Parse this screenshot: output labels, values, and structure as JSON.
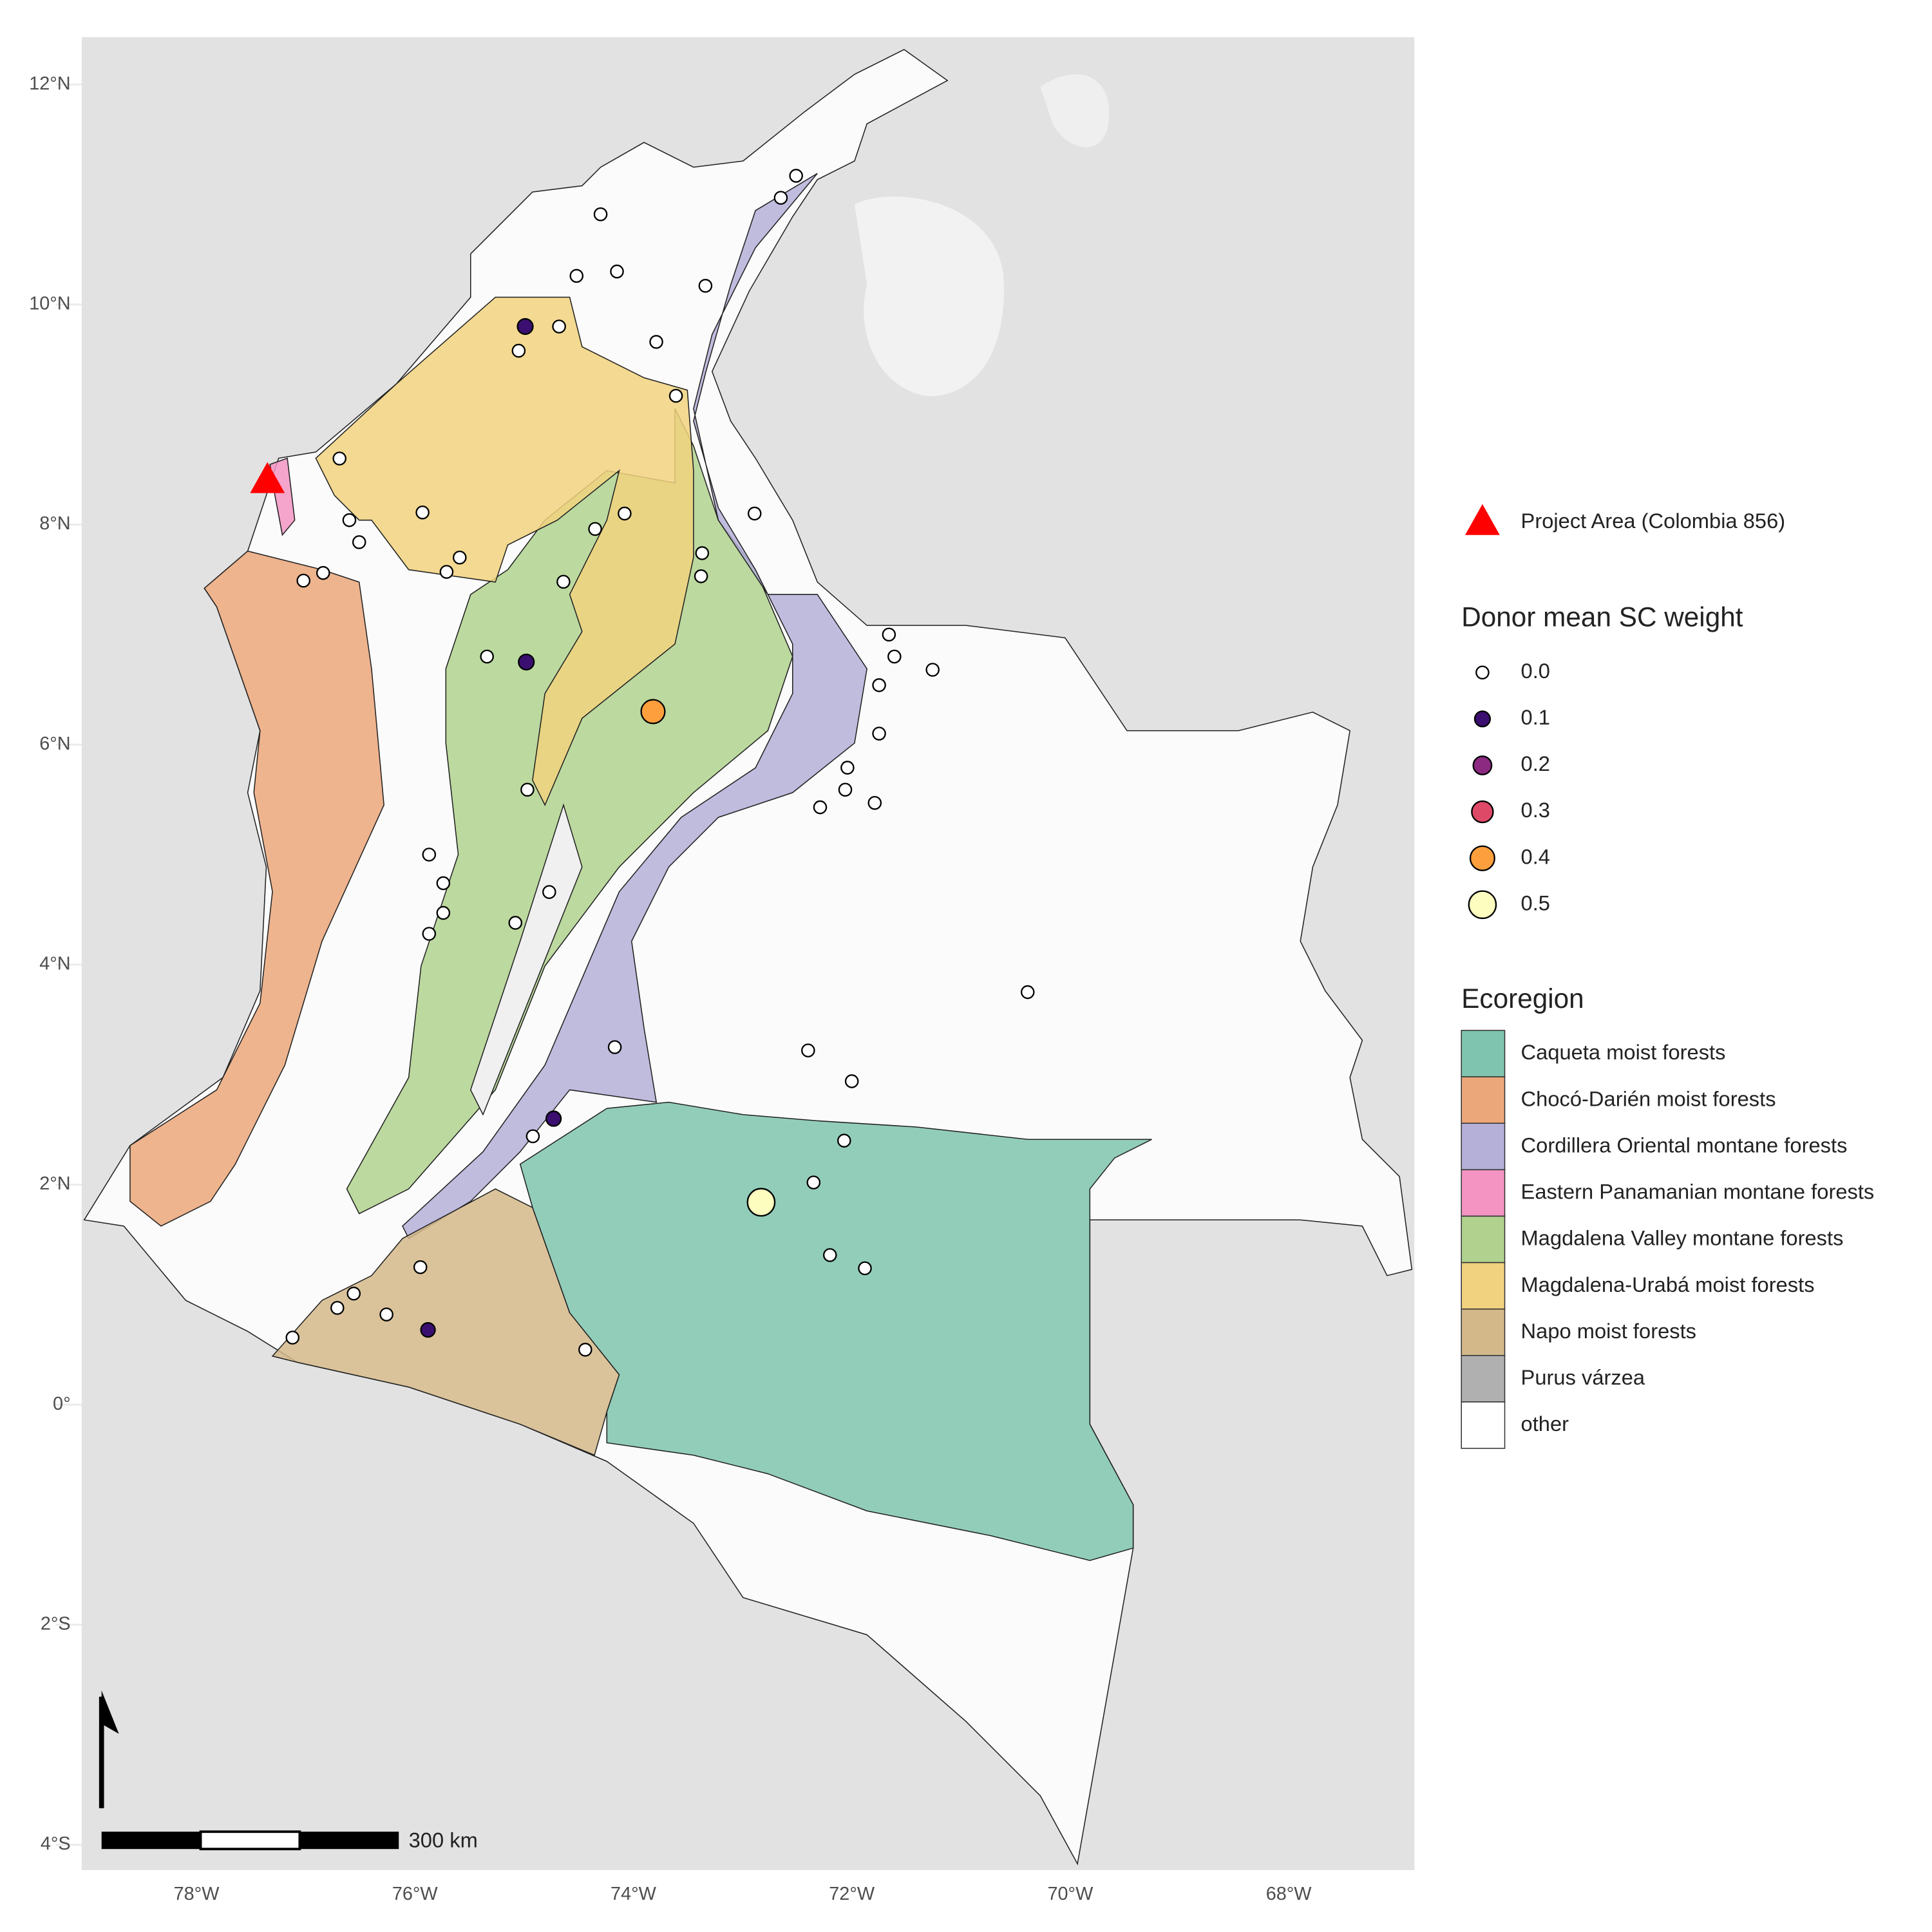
{
  "map": {
    "xlim": [
      -79.05,
      -66.85
    ],
    "ylim": [
      -4.23,
      12.43
    ],
    "xticks": [
      {
        "value": -78,
        "label": "78°W"
      },
      {
        "value": -76,
        "label": "76°W"
      },
      {
        "value": -74,
        "label": "74°W"
      },
      {
        "value": -72,
        "label": "72°W"
      },
      {
        "value": -70,
        "label": "70°W"
      },
      {
        "value": -68,
        "label": "68°W"
      }
    ],
    "yticks": [
      {
        "value": -4,
        "label": "4°S"
      },
      {
        "value": -2,
        "label": "2°S"
      },
      {
        "value": 0,
        "label": "0°"
      },
      {
        "value": 2,
        "label": "2°N"
      },
      {
        "value": 4,
        "label": "4°N"
      },
      {
        "value": 6,
        "label": "6°N"
      },
      {
        "value": 8,
        "label": "8°N"
      },
      {
        "value": 10,
        "label": "10°N"
      },
      {
        "value": 12,
        "label": "12°N"
      }
    ],
    "project": {
      "name": "Project Area (Colombia 856)",
      "x": -77.35,
      "y": 8.41,
      "color": "#ff0000"
    },
    "donors": {
      "title": "Donor mean SC weight",
      "x": [
        -72.51,
        -72.65,
        -74.3,
        -74.52,
        -74.15,
        -73.34,
        -74.68,
        -73.79,
        -75.05,
        -73.61,
        -76.69,
        -72.89,
        -74.08,
        -74.35,
        -75.93,
        -76.6,
        -76.51,
        -73.37,
        -75.59,
        -75.71,
        -74.64,
        -73.38,
        -76.84,
        -77.02,
        -71.66,
        -71.61,
        -71.26,
        -75.34,
        -71.75,
        -71.75,
        -74.97,
        -72.04,
        -72.06,
        -72.29,
        -71.79,
        -75.87,
        -75.74,
        -75.74,
        -75.87,
        -74.77,
        -75.08,
        -70.39,
        -72.4,
        -74.17,
        -72.0,
        -74.92,
        -72.07,
        -72.35,
        -72.2,
        -71.88,
        -75.95,
        -76.56,
        -76.71,
        -76.26,
        -74.44,
        -77.12,
        -74.99,
        -74.98,
        -74.73,
        -75.88,
        -73.82,
        -72.83
      ],
      "y": [
        11.17,
        10.97,
        10.82,
        10.26,
        10.3,
        10.17,
        9.8,
        9.66,
        9.58,
        9.17,
        8.6,
        8.1,
        8.1,
        7.96,
        8.11,
        8.04,
        7.84,
        7.74,
        7.7,
        7.57,
        7.48,
        7.53,
        7.56,
        7.49,
        7.0,
        6.8,
        6.68,
        6.8,
        6.54,
        6.1,
        5.59,
        5.79,
        5.59,
        5.43,
        5.47,
        5.0,
        4.74,
        4.47,
        4.28,
        4.66,
        4.38,
        3.75,
        3.22,
        3.25,
        2.94,
        2.44,
        2.4,
        2.02,
        1.36,
        1.24,
        1.25,
        1.01,
        0.88,
        0.82,
        0.5,
        0.61,
        9.8,
        6.75,
        2.6,
        0.68,
        6.3,
        1.84
      ],
      "weight": [
        0,
        0,
        0,
        0,
        0,
        0,
        0,
        0,
        0,
        0,
        0,
        0,
        0,
        0,
        0,
        0,
        0,
        0,
        0,
        0,
        0,
        0,
        0,
        0,
        0,
        0,
        0,
        0,
        0,
        0,
        0,
        0,
        0,
        0,
        0,
        0,
        0,
        0,
        0,
        0,
        0,
        0,
        0,
        0,
        0,
        0,
        0,
        0,
        0,
        0,
        0,
        0,
        0,
        0,
        0,
        0,
        0.1,
        0.1,
        0.08,
        0.06,
        0.38,
        0.5
      ],
      "legend": [
        {
          "value": 0,
          "label": "0.0"
        },
        0.1,
        0.2,
        0.3,
        0.4,
        0.5
      ],
      "legend_colors": [
        "#ffffff",
        "#3b0f70",
        "#8c2981",
        "#de4968",
        "#fe9f3d",
        "#fcfdbf"
      ]
    },
    "ecoregion": {
      "title": "Ecoregion",
      "names": [
        "Caqueta moist forests",
        "Chocó-Darién moist forests",
        "Cordillera Oriental montane forests",
        "Eastern Panamanian montane forests",
        "Magdalena Valley montane forests",
        "Magdalena-Urabá moist forests",
        "Napo moist forests",
        "Purus várzea",
        "other"
      ],
      "colors": [
        "#7fc4ae",
        "#eba77a",
        "#b4b0d8",
        "#f394c3",
        "#b0d28e",
        "#f1d27e",
        "#d3b98a",
        "#b0b0b0",
        "#ffffff"
      ]
    },
    "scale_label": "300 km"
  }
}
